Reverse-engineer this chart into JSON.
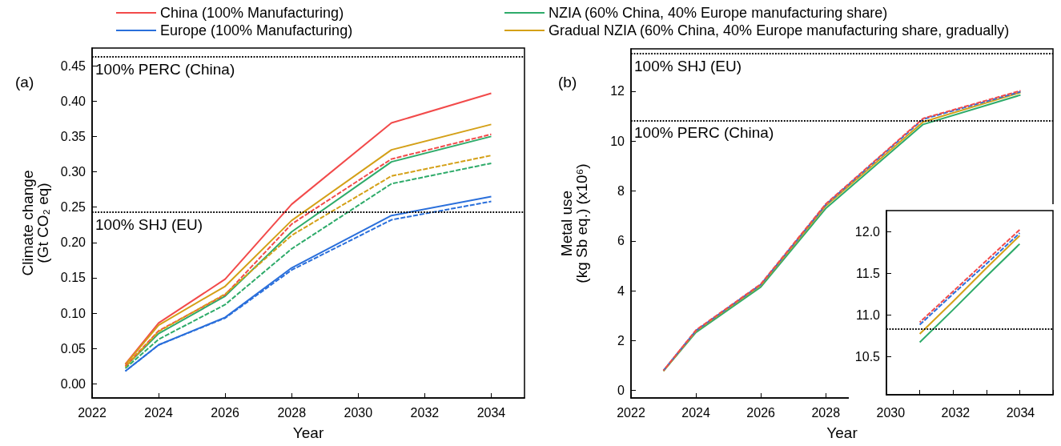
{
  "chart_data": [
    {
      "type": "line",
      "title": "(a)",
      "xlabel": "Year",
      "ylabel": "Climate change\n(Gt CO₂ eq)",
      "x": [
        2023,
        2024,
        2026,
        2028,
        2031,
        2034
      ],
      "xlim": [
        2022,
        2035
      ],
      "xticks": [
        2022,
        2024,
        2026,
        2028,
        2030,
        2032,
        2034
      ],
      "ylim": [
        -0.02,
        0.475
      ],
      "yticks": [
        {
          "value": 0,
          "label": "0.00"
        },
        {
          "value": 0.05,
          "label": "0.05"
        },
        {
          "value": 0.1,
          "label": "0.10"
        },
        {
          "value": 0.15,
          "label": "0.15"
        },
        {
          "value": 0.2,
          "label": "0.20"
        },
        {
          "value": 0.25,
          "label": "0.25"
        },
        {
          "value": 0.3,
          "label": "0.30"
        },
        {
          "value": 0.35,
          "label": "0.35"
        },
        {
          "value": 0.4,
          "label": "0.40"
        },
        {
          "value": 0.45,
          "label": "0.45"
        }
      ],
      "legend": "top",
      "grid": false,
      "marker": "none",
      "line_style": "solid",
      "ref_lines": [
        {
          "axis": "y",
          "value": 0.463,
          "label": "100% PERC (China)"
        },
        {
          "axis": "y",
          "value": 0.243,
          "label": "100% SHJ (EU)"
        }
      ],
      "series": [
        {
          "name": "China (100% Manufacturing)",
          "color": "#f24a4a",
          "values": [
            0.028,
            0.086,
            0.148,
            0.254,
            0.369,
            0.411
          ]
        },
        {
          "name": "Europe (100% Manufacturing)",
          "color": "#2a6fdb",
          "values": [
            0.018,
            0.055,
            0.094,
            0.164,
            0.238,
            0.265
          ]
        },
        {
          "name": "NZIA (60% China, 40% Europe manufacturing share)",
          "color": "#2eab6a",
          "values": [
            0.024,
            0.071,
            0.124,
            0.215,
            0.314,
            0.35
          ]
        },
        {
          "name": "Gradual NZIA (60% China, 40% Europe manufacturing share, gradually)",
          "color": "#d4a017",
          "values": [
            0.027,
            0.083,
            0.138,
            0.231,
            0.331,
            0.367
          ]
        },
        {
          "color": "#f24a4a",
          "line_style": "dashed",
          "values": [
            0.025,
            0.075,
            0.126,
            0.226,
            0.318,
            0.353
          ]
        },
        {
          "color": "#2a6fdb",
          "line_style": "dashed",
          "values": [
            0.018,
            0.055,
            0.093,
            0.161,
            0.232,
            0.258
          ]
        },
        {
          "color": "#2eab6a",
          "line_style": "dashed",
          "values": [
            0.022,
            0.063,
            0.112,
            0.191,
            0.283,
            0.312
          ]
        },
        {
          "color": "#d4a017",
          "line_style": "dashed",
          "values": [
            0.024,
            0.074,
            0.127,
            0.21,
            0.294,
            0.323
          ]
        }
      ]
    },
    {
      "type": "line",
      "title": "(b)",
      "xlabel": "Year",
      "ylabel": "Metal use\n(kg Sb eq.) (x10⁶)",
      "x": [
        2023,
        2024,
        2026,
        2028,
        2031,
        2034
      ],
      "xlim": [
        2022,
        2035
      ],
      "xticks": [
        2022,
        2024,
        2026,
        2028,
        2030,
        2032,
        2034
      ],
      "ylim": [
        -0.3,
        13.7
      ],
      "yticks": [
        0,
        2,
        4,
        6,
        8,
        10,
        12
      ],
      "legend": false,
      "grid": false,
      "marker": "none",
      "line_style": "solid",
      "ref_lines": [
        {
          "axis": "y",
          "value": 13.5,
          "label": "100% SHJ (EU)"
        },
        {
          "axis": "y",
          "value": 10.83,
          "label": "100% PERC (China)"
        }
      ],
      "series": [
        {
          "color": "#2eab6a",
          "values": [
            0.78,
            2.33,
            4.15,
            7.3,
            10.67,
            11.85
          ]
        },
        {
          "color": "#d4a017",
          "values": [
            0.78,
            2.38,
            4.22,
            7.4,
            10.77,
            11.95
          ]
        },
        {
          "color": "#2a6fdb",
          "line_style": "dashed",
          "values": [
            0.8,
            2.4,
            4.25,
            7.45,
            10.88,
            11.98
          ]
        },
        {
          "color": "#f24a4a",
          "line_style": "dashed",
          "values": [
            0.8,
            2.42,
            4.27,
            7.48,
            10.91,
            12.02
          ]
        }
      ]
    },
    {
      "type": "line",
      "categories": [
        null,
        null,
        null,
        null
      ],
      "ylim": [
        10.04,
        12.25
      ],
      "yticks": [
        10.5,
        {
          "value": 11,
          "label": "11.0"
        },
        11.5,
        {
          "value": 12,
          "label": "12.0"
        }
      ],
      "tick_labels": "y",
      "legend": false,
      "grid": false,
      "marker": "none",
      "line_style": "solid",
      "ref_lines": [
        {
          "axis": "y",
          "value": 10.83,
          "label": null
        }
      ],
      "series": [
        {
          "color": "#2eab6a",
          "values": [
            10.67,
            11.06,
            11.46,
            11.85
          ]
        },
        {
          "color": "#d4a017",
          "values": [
            10.77,
            11.16,
            11.56,
            11.95
          ]
        },
        {
          "color": "#2a6fdb",
          "line_style": "dashed",
          "values": [
            10.88,
            11.25,
            11.61,
            11.98
          ]
        },
        {
          "color": "#f24a4a",
          "line_style": "dashed",
          "values": [
            10.91,
            11.28,
            11.65,
            12.02
          ]
        }
      ]
    }
  ]
}
